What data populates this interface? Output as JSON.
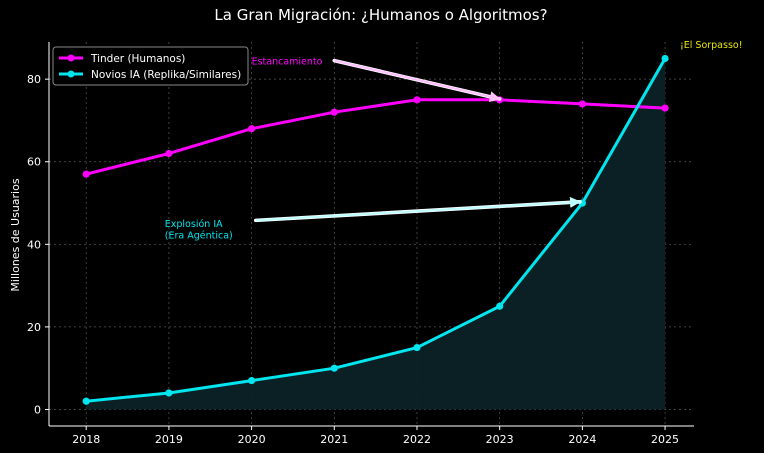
{
  "chart_data": {
    "type": "line",
    "title": "La Gran Migración: ¿Humanos o Algoritmos?",
    "xlabel": "",
    "ylabel": "Millones de Usuarios",
    "x": [
      2018,
      2019,
      2020,
      2021,
      2022,
      2023,
      2024,
      2025
    ],
    "x_tick_labels": [
      "2018",
      "2019",
      "2020",
      "2021",
      "2022",
      "2023",
      "2024",
      "2025"
    ],
    "y_ticks": [
      0,
      20,
      40,
      60,
      80
    ],
    "y_tick_labels": [
      "0",
      "20",
      "40",
      "60",
      "80"
    ],
    "xlim": [
      2017.55,
      2025.35
    ],
    "ylim": [
      -4,
      89
    ],
    "grid": true,
    "legend_position": "top-left",
    "series": [
      {
        "name": "Tinder (Humanos)",
        "color": "#ff00ff",
        "values": [
          57,
          62,
          68,
          72,
          75,
          75,
          74,
          73
        ]
      },
      {
        "name": "Novios IA (Replika/Similares)",
        "color": "#00e5ee",
        "values": [
          2,
          4,
          7,
          10,
          15,
          25,
          50,
          85
        ],
        "fill": "#0b2226"
      }
    ],
    "annotations": [
      {
        "id": "estancamiento",
        "lines": [
          "Estancamiento"
        ],
        "color": "#ff00ff",
        "arrow_color": "#ffc0ff",
        "text_anchor": [
          2020.0,
          83.5
        ],
        "arrow_from": [
          2021.0,
          84.5
        ],
        "arrow_to": [
          2023.0,
          75.2
        ]
      },
      {
        "id": "explosion",
        "lines": [
          "Explosión IA",
          "(Era Agéntica)"
        ],
        "color": "#00e5ee",
        "arrow_color": "#c0ffff",
        "text_anchor": [
          2018.95,
          44.2
        ],
        "arrow_from": [
          2020.05,
          45.8
        ],
        "arrow_to": [
          2023.97,
          50.3
        ]
      },
      {
        "id": "sorpasso",
        "lines": [
          "¡El Sorpasso!"
        ],
        "color": "#e6e600",
        "text_anchor": [
          2025.18,
          87.5
        ]
      }
    ]
  }
}
